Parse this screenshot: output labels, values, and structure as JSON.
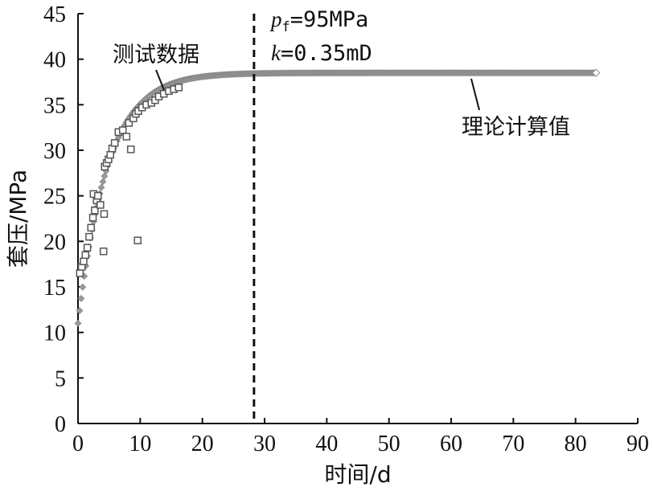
{
  "chart_data": {
    "type": "scatter",
    "title": "",
    "xlabel": "时间/d",
    "ylabel": "套压/MPa",
    "xlim": [
      0,
      90
    ],
    "ylim": [
      0,
      45
    ],
    "x_ticks": [
      0,
      10,
      20,
      30,
      40,
      50,
      60,
      70,
      80,
      90
    ],
    "y_ticks": [
      0,
      5,
      10,
      15,
      20,
      25,
      30,
      35,
      40,
      45
    ],
    "grid": false,
    "legend": "none",
    "vline": {
      "x": 28.3,
      "style": "dashed"
    },
    "annotations": {
      "measured_label": "测试数据",
      "calculated_label": "理论计算值",
      "pf_symbol": "p",
      "pf_sub": "f",
      "pf_value": "=95MPa",
      "k_symbol": "k",
      "k_value": "=0.35mD"
    },
    "series": [
      {
        "name": "测试数据",
        "marker": "square",
        "color": "#555555",
        "points": [
          [
            0.3,
            16.5
          ],
          [
            0.6,
            17.2
          ],
          [
            0.9,
            17.8
          ],
          [
            1.2,
            18.5
          ],
          [
            1.5,
            19.3
          ],
          [
            1.8,
            20.5
          ],
          [
            2.1,
            21.5
          ],
          [
            2.4,
            22.6
          ],
          [
            2.7,
            23.4
          ],
          [
            3.0,
            24.5
          ],
          [
            2.5,
            25.2
          ],
          [
            3.2,
            25.0
          ],
          [
            3.6,
            24.0
          ],
          [
            4.2,
            23.0
          ],
          [
            4.1,
            18.9
          ],
          [
            4.3,
            28.2
          ],
          [
            4.6,
            28.6
          ],
          [
            4.9,
            29.0
          ],
          [
            5.2,
            29.5
          ],
          [
            5.5,
            30.2
          ],
          [
            5.9,
            30.8
          ],
          [
            6.5,
            32.0
          ],
          [
            7.2,
            32.2
          ],
          [
            7.8,
            31.5
          ],
          [
            8.2,
            33.0
          ],
          [
            8.5,
            30.1
          ],
          [
            8.9,
            33.5
          ],
          [
            9.3,
            34.0
          ],
          [
            9.7,
            34.3
          ],
          [
            9.6,
            20.1
          ],
          [
            10.3,
            34.7
          ],
          [
            11.0,
            35.0
          ],
          [
            11.8,
            35.2
          ],
          [
            12.4,
            35.5
          ],
          [
            13.0,
            35.9
          ],
          [
            13.8,
            36.2
          ],
          [
            14.6,
            36.5
          ],
          [
            15.4,
            36.7
          ],
          [
            16.2,
            36.9
          ]
        ]
      },
      {
        "name": "理论计算值",
        "marker": "diamond",
        "color": "#9a9a9a",
        "model": {
          "type": "exponential",
          "y0": 11.0,
          "ymax": 38.5,
          "tau": 4.8,
          "x_start": 0,
          "x_end": 83.3,
          "step": 0.25
        }
      }
    ]
  }
}
